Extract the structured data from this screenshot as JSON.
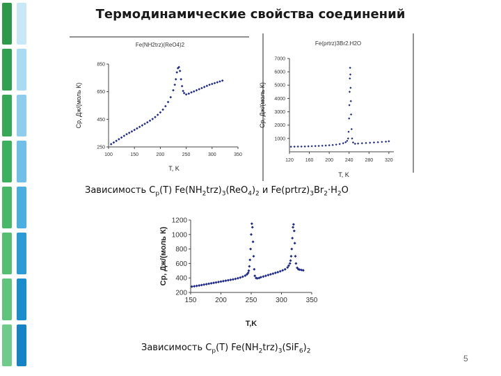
{
  "slide": {
    "title": "Термодинамические свойства соединений",
    "page_number": "5",
    "caption1": {
      "p1": "Зависимость C",
      "s1": "p",
      "p2": "(T) Fe(NH",
      "s2": "2",
      "p3": "trz)",
      "s3": "3",
      "p4": "(ReO",
      "s4": "4",
      "p5": ")",
      "s5": "2",
      "p6": " и Fe(prtrz)",
      "s6": "3",
      "p7": "Br",
      "s7": "2",
      "p8": "·H",
      "s8": "2",
      "p9": "O"
    },
    "caption2": {
      "p1": "Зависимость C",
      "s1": "p",
      "p2": "(T) Fe(NH",
      "s2": "2",
      "p3": "trz)",
      "s3": "3",
      "p4": "(SiF",
      "s4": "6",
      "p5": ")",
      "s5": "2"
    }
  },
  "colors": {
    "points": "#1f2a8a",
    "stripe_dark": "#2a9a47",
    "stripe_light": "#9fd8f0"
  },
  "chart_data": [
    {
      "type": "scatter",
      "title": "Fe(NH2trz)(ReO4)2",
      "xlabel": "T, K",
      "ylabel": "Cp, Дж/(моль К)",
      "xlim": [
        100,
        350
      ],
      "ylim": [
        250,
        850
      ],
      "xticks": [
        "100",
        "150",
        "200",
        "250",
        "300",
        "350"
      ],
      "yticks": [
        "250",
        "450",
        "650",
        "850"
      ],
      "x": [
        105,
        110,
        115,
        120,
        125,
        130,
        135,
        140,
        145,
        150,
        155,
        160,
        165,
        170,
        175,
        180,
        185,
        190,
        195,
        200,
        205,
        210,
        215,
        220,
        225,
        228,
        230,
        232,
        234,
        236,
        238,
        240,
        242,
        244,
        246,
        250,
        255,
        260,
        265,
        270,
        275,
        280,
        285,
        290,
        295,
        300,
        305,
        310,
        315,
        320
      ],
      "values": [
        270,
        282,
        294,
        306,
        318,
        330,
        342,
        352,
        362,
        373,
        384,
        395,
        406,
        417,
        428,
        440,
        452,
        466,
        482,
        500,
        520,
        545,
        575,
        610,
        660,
        700,
        740,
        790,
        820,
        828,
        800,
        740,
        690,
        655,
        640,
        630,
        636,
        645,
        652,
        660,
        668,
        676,
        684,
        692,
        700,
        706,
        712,
        718,
        724,
        730
      ]
    },
    {
      "type": "scatter",
      "title": "Fe(prtrz)3Br2.H2O",
      "xlabel": "T, K",
      "ylabel": "Cp, Дж/(моль К)",
      "xlim": [
        120,
        330
      ],
      "ylim": [
        0,
        7000
      ],
      "xticks": [
        "120",
        "160",
        "200",
        "240",
        "280",
        "320"
      ],
      "yticks": [
        "1000",
        "2000",
        "3000",
        "4000",
        "5000",
        "6000",
        "7000"
      ],
      "x": [
        123,
        130,
        137,
        144,
        151,
        158,
        165,
        172,
        179,
        186,
        193,
        200,
        207,
        214,
        221,
        228,
        233,
        236,
        238,
        239,
        240,
        240.5,
        241,
        241.5,
        242,
        242.5,
        243,
        243.5,
        244,
        245,
        246,
        248,
        252,
        258,
        266,
        274,
        282,
        290,
        298,
        306,
        314,
        320
      ],
      "values": [
        380,
        385,
        390,
        395,
        400,
        410,
        420,
        430,
        440,
        455,
        470,
        490,
        510,
        540,
        580,
        640,
        720,
        820,
        1000,
        1500,
        2500,
        3500,
        4500,
        5500,
        6300,
        5800,
        4800,
        3800,
        2800,
        1700,
        1000,
        700,
        600,
        620,
        640,
        660,
        680,
        700,
        720,
        740,
        760,
        790
      ]
    },
    {
      "type": "scatter",
      "title": "",
      "xlabel": "T,K",
      "ylabel": "Cp, Дж/(моль К)",
      "xlim": [
        150,
        350
      ],
      "ylim": [
        200,
        1200
      ],
      "xticks": [
        "150",
        "200",
        "250",
        "300",
        "350"
      ],
      "yticks": [
        "200",
        "400",
        "600",
        "800",
        "1000",
        "1200"
      ],
      "x": [
        152,
        156,
        160,
        164,
        168,
        172,
        176,
        180,
        184,
        188,
        192,
        196,
        200,
        204,
        208,
        212,
        216,
        220,
        224,
        228,
        232,
        236,
        240,
        243,
        245,
        246,
        247,
        248,
        249,
        250,
        251,
        252,
        253,
        254,
        255,
        256,
        258,
        260,
        263,
        266,
        270,
        274,
        278,
        282,
        286,
        290,
        294,
        298,
        302,
        306,
        310,
        312,
        314,
        315,
        316,
        317,
        318,
        319,
        320,
        321,
        322,
        323,
        324,
        326,
        328,
        330,
        333,
        336
      ],
      "values": [
        280,
        285,
        290,
        296,
        302,
        308,
        314,
        320,
        326,
        332,
        338,
        344,
        350,
        356,
        362,
        368,
        374,
        380,
        388,
        396,
        406,
        418,
        432,
        450,
        470,
        500,
        560,
        650,
        800,
        1000,
        1150,
        1100,
        900,
        700,
        520,
        430,
        400,
        395,
        400,
        410,
        420,
        430,
        440,
        450,
        460,
        470,
        480,
        492,
        505,
        520,
        545,
        570,
        600,
        640,
        700,
        800,
        950,
        1100,
        1140,
        1050,
        880,
        700,
        600,
        540,
        520,
        515,
        510,
        505
      ]
    }
  ]
}
